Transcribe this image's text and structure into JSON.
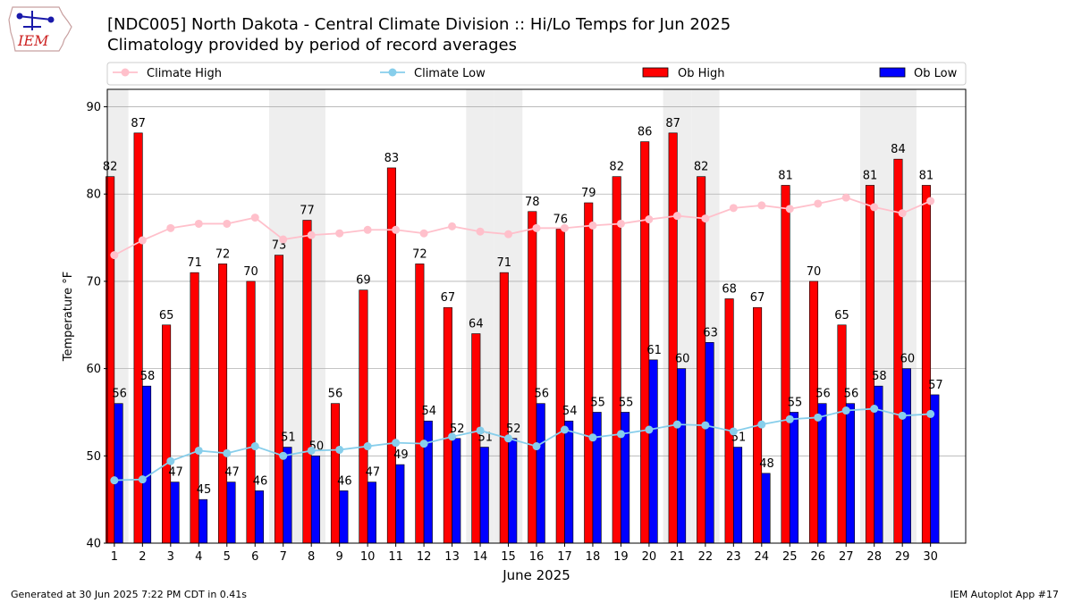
{
  "header": {
    "logo_text": "IEM",
    "title": "[NDC005] North Dakota - Central Climate Division :: Hi/Lo Temps for Jun 2025",
    "subtitle": "Climatology provided by period of record averages"
  },
  "footer": {
    "left": "Generated at 30 Jun 2025 7:22 PM CDT in 0.41s",
    "right": "IEM Autoplot App #17"
  },
  "colors": {
    "ob_high": "#ff0000",
    "ob_low": "#0000ff",
    "climate_high": "#ffc0cb",
    "climate_low": "#87ceeb",
    "weekend_band": "#eeeeee",
    "grid": "#b0b0b0"
  },
  "chart_data": {
    "type": "bar",
    "xlabel": "June 2025",
    "ylabel": "Temperature °F",
    "ylim": [
      40,
      92
    ],
    "yticks": [
      40,
      50,
      60,
      70,
      80,
      90
    ],
    "grid": "horizontal",
    "legend_placement": "top",
    "categories": [
      "1",
      "2",
      "3",
      "4",
      "5",
      "6",
      "7",
      "8",
      "9",
      "10",
      "11",
      "12",
      "13",
      "14",
      "15",
      "16",
      "17",
      "18",
      "19",
      "20",
      "21",
      "22",
      "23",
      "24",
      "25",
      "26",
      "27",
      "28",
      "29",
      "30"
    ],
    "weekend_days": [
      1,
      7,
      8,
      14,
      15,
      21,
      22,
      28,
      29
    ],
    "series": [
      {
        "name": "Ob High",
        "kind": "bar",
        "values": [
          82,
          87,
          65,
          71,
          72,
          70,
          73,
          77,
          56,
          69,
          83,
          72,
          67,
          64,
          71,
          78,
          76,
          79,
          82,
          86,
          87,
          82,
          68,
          67,
          81,
          70,
          65,
          81,
          84,
          81
        ]
      },
      {
        "name": "Ob Low",
        "kind": "bar",
        "values": [
          56,
          58,
          47,
          45,
          47,
          46,
          51,
          50,
          46,
          47,
          49,
          54,
          52,
          51,
          52,
          56,
          54,
          55,
          55,
          61,
          60,
          63,
          51,
          48,
          55,
          56,
          56,
          58,
          60,
          57
        ]
      },
      {
        "name": "Climate High",
        "kind": "line",
        "values": [
          73.0,
          74.7,
          76.1,
          76.6,
          76.6,
          77.3,
          74.8,
          75.3,
          75.5,
          75.9,
          75.9,
          75.5,
          76.3,
          75.7,
          75.4,
          76.1,
          76.1,
          76.4,
          76.6,
          77.1,
          77.5,
          77.2,
          78.4,
          78.7,
          78.3,
          78.9,
          79.6,
          78.5,
          77.8,
          79.2
        ]
      },
      {
        "name": "Climate Low",
        "kind": "line",
        "values": [
          47.2,
          47.3,
          49.4,
          50.6,
          50.3,
          51.1,
          50.0,
          50.6,
          50.7,
          51.1,
          51.5,
          51.4,
          52.2,
          52.9,
          52.0,
          51.1,
          53.0,
          52.1,
          52.5,
          53.0,
          53.6,
          53.5,
          52.8,
          53.6,
          54.2,
          54.4,
          55.2,
          55.4,
          54.6,
          54.8
        ]
      }
    ]
  }
}
